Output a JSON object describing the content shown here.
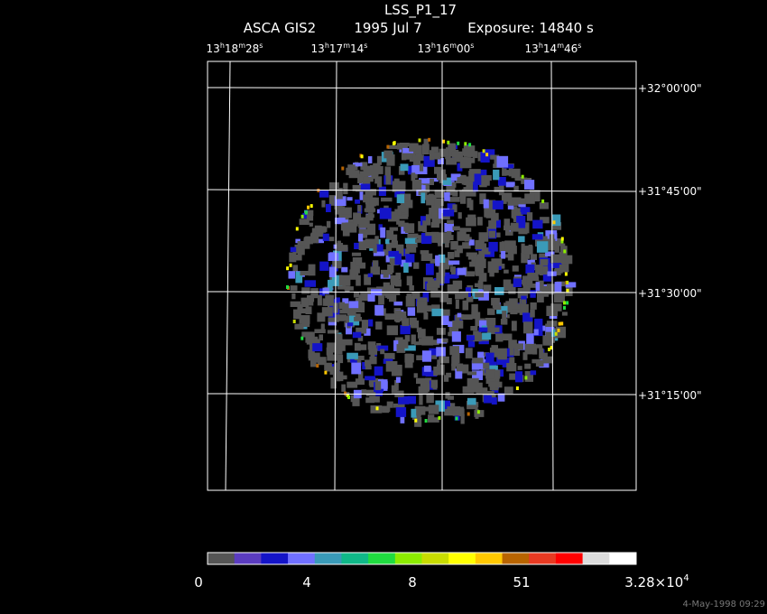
{
  "header": {
    "title": "LSS_P1_17",
    "instrument": "ASCA GIS2",
    "date": "1995 Jul  7",
    "exposure": "Exposure: 14840 s"
  },
  "ra_labels": [
    [
      "13",
      "h",
      "18",
      "m",
      "28",
      "s"
    ],
    [
      "13",
      "h",
      "17",
      "m",
      "14",
      "s"
    ],
    [
      "13",
      "h",
      "16",
      "m",
      "00",
      "s"
    ],
    [
      "13",
      "h",
      "14",
      "m",
      "46",
      "s"
    ]
  ],
  "dec_labels": [
    "+32°00'00\"",
    "+31°45'00\"",
    "+31°30'00\"",
    "+31°15'00\""
  ],
  "colorbar": {
    "colors": [
      "#555555",
      "#5b3cc0",
      "#1414c8",
      "#7070ff",
      "#3a9ab8",
      "#10b888",
      "#20dc40",
      "#8cec00",
      "#c8dc00",
      "#ffff00",
      "#ffc800",
      "#b86400",
      "#e83a22",
      "#ff0000",
      "#dcdcdc",
      "#ffffff"
    ],
    "labels": [
      "0",
      "4",
      "8",
      "51"
    ],
    "max_label": {
      "mantissa": "3.28×10",
      "exponent": "4"
    }
  },
  "footer": {
    "timestamp": "4-May-1998 09:29"
  }
}
